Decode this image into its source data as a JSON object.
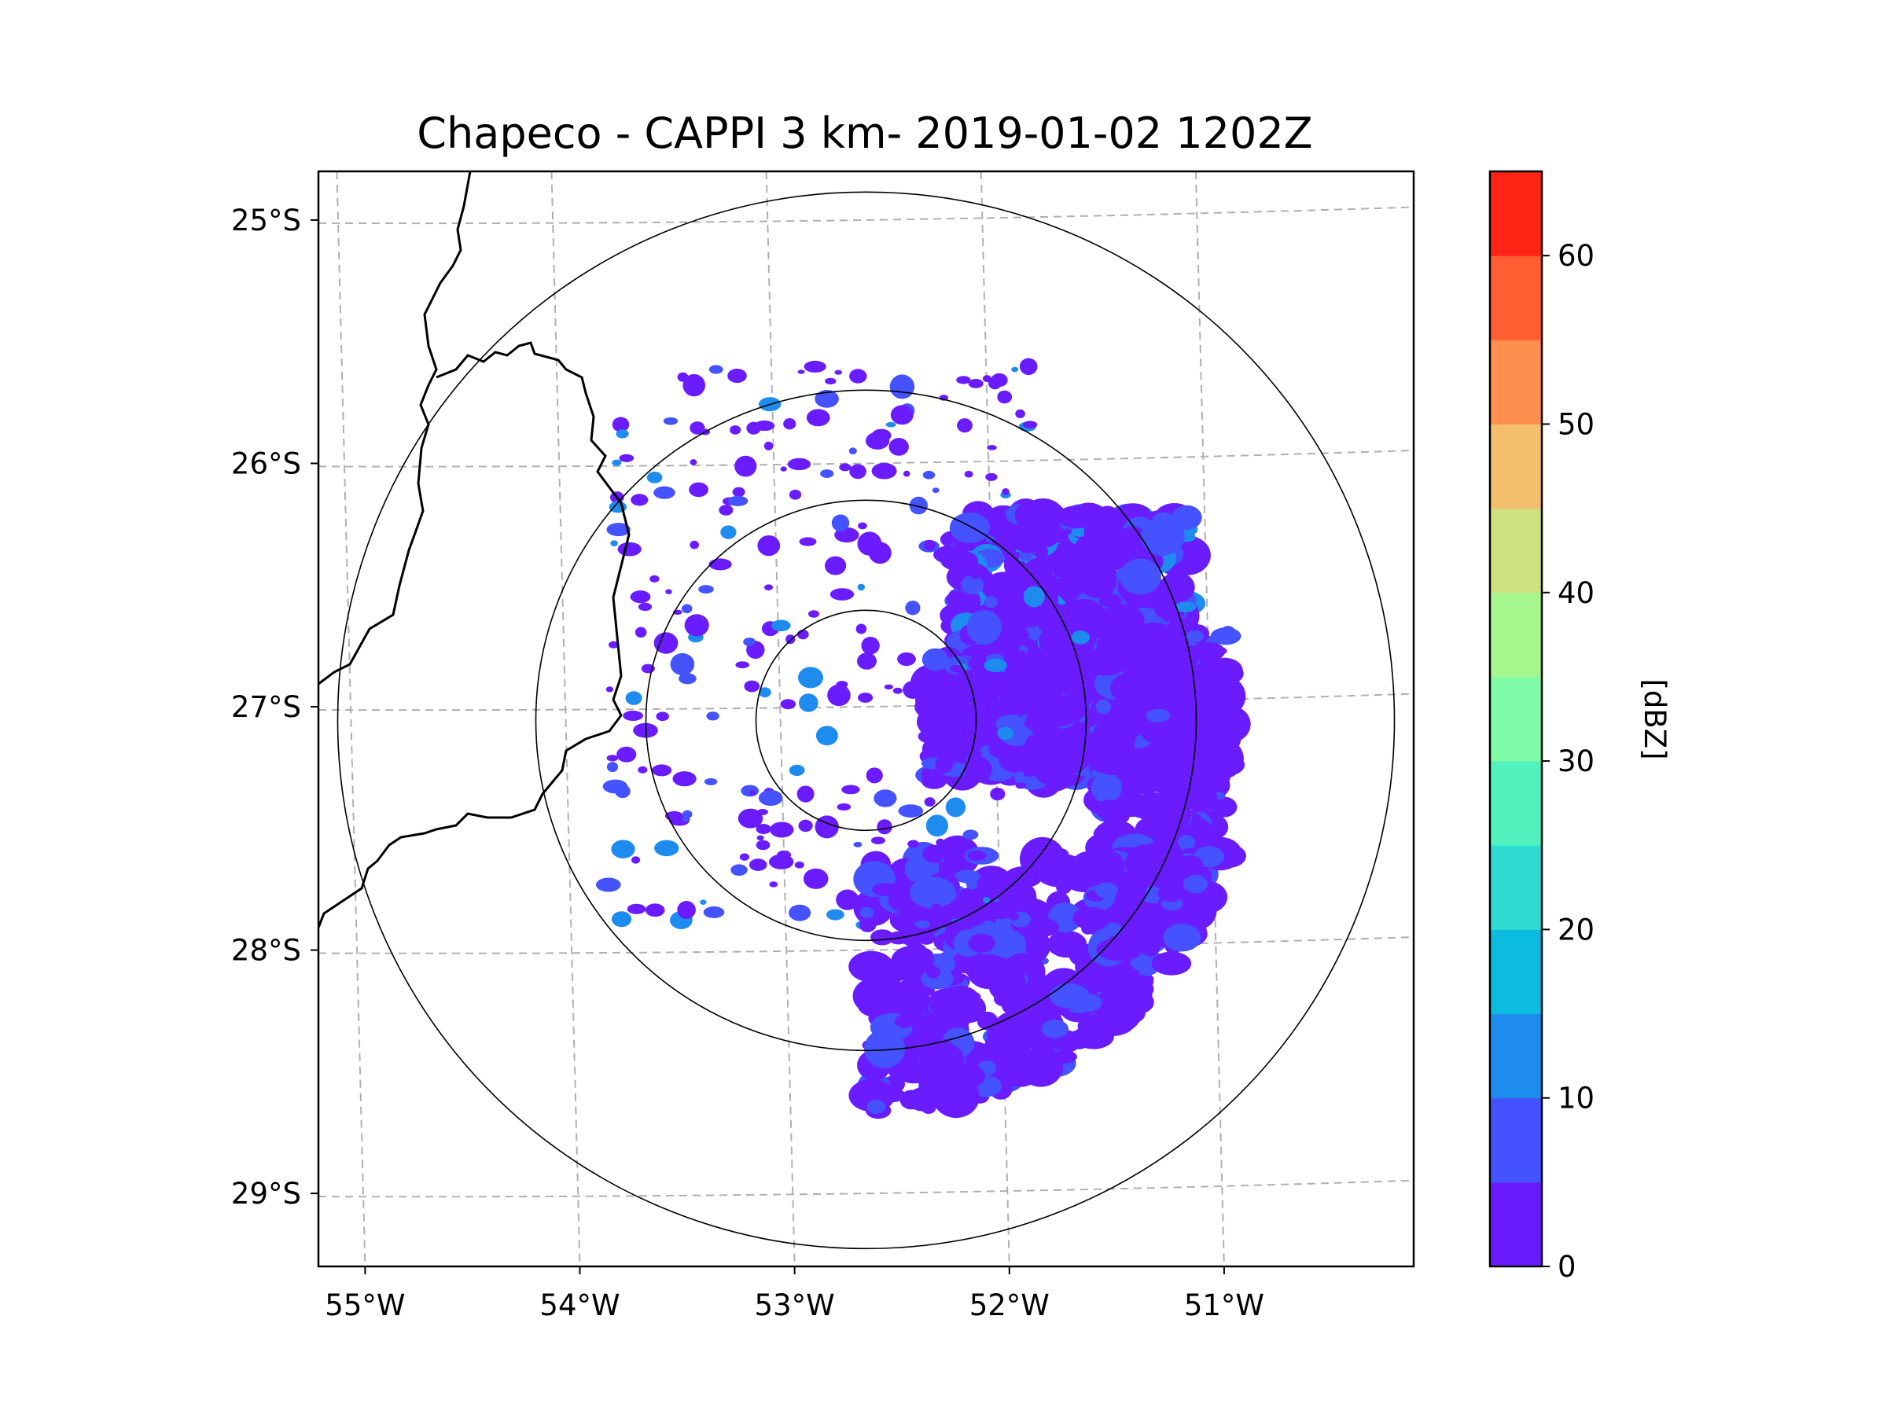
{
  "chart_data": {
    "type": "heatmap",
    "title": "Chapeco - CAPPI 3 km- 2019-01-02 1202Z",
    "xlabel": "",
    "ylabel": "",
    "x_tick_labels": [
      "55°W",
      "54°W",
      "53°W",
      "52°W",
      "51°W"
    ],
    "x_tick_values": [
      -55,
      -54,
      -53,
      -52,
      -51
    ],
    "y_tick_labels": [
      "25°S",
      "26°S",
      "27°S",
      "28°S",
      "29°S"
    ],
    "y_tick_values": [
      -25,
      -26,
      -27,
      -28,
      -29
    ],
    "xlim": [
      -55.15,
      -50.05
    ],
    "ylim": [
      -29.3,
      -24.8
    ],
    "grid": true,
    "radar_center": {
      "lon": -52.6,
      "lat": -27.03
    },
    "range_rings_km": [
      50,
      100,
      150,
      240
    ],
    "colorbar": {
      "label": "[dBZ]",
      "tick_labels": [
        "0",
        "10",
        "20",
        "30",
        "40",
        "50",
        "60"
      ],
      "tick_values": [
        0,
        10,
        20,
        30,
        40,
        50,
        60
      ],
      "range": [
        0,
        65
      ],
      "bins": [
        {
          "min": 0,
          "max": 5,
          "color": "#6a1cff"
        },
        {
          "min": 5,
          "max": 10,
          "color": "#4452ff"
        },
        {
          "min": 10,
          "max": 15,
          "color": "#1e8cef"
        },
        {
          "min": 15,
          "max": 20,
          "color": "#0cbce0"
        },
        {
          "min": 20,
          "max": 25,
          "color": "#2edbd1"
        },
        {
          "min": 25,
          "max": 30,
          "color": "#52f2be"
        },
        {
          "min": 30,
          "max": 35,
          "color": "#7efca8"
        },
        {
          "min": 35,
          "max": 40,
          "color": "#a6f68e"
        },
        {
          "min": 40,
          "max": 45,
          "color": "#cde17f"
        },
        {
          "min": 45,
          "max": 50,
          "color": "#f4bf6c"
        },
        {
          "min": 50,
          "max": 55,
          "color": "#ff8f4f"
        },
        {
          "min": 55,
          "max": 60,
          "color": "#ff5d32"
        },
        {
          "min": 60,
          "max": 65,
          "color": "#ff2416"
        }
      ]
    },
    "echo_regions": [
      {
        "name": "east-northeast band",
        "lon": [
          -52.2,
          -51.1
        ],
        "lat": [
          -26.8,
          -26.2
        ],
        "dbz": [
          0,
          15
        ]
      },
      {
        "name": "east band",
        "lon": [
          -52.3,
          -51.1
        ],
        "lat": [
          -27.3,
          -26.8
        ],
        "dbz": [
          0,
          10
        ]
      },
      {
        "name": "eastern arc",
        "lon": [
          -51.5,
          -50.9
        ],
        "lat": [
          -28.4,
          -26.7
        ],
        "dbz": [
          0,
          10
        ]
      },
      {
        "name": "south-southeast mass",
        "lon": [
          -52.6,
          -51.0
        ],
        "lat": [
          -28.7,
          -27.6
        ],
        "dbz": [
          0,
          10
        ]
      },
      {
        "name": "scattered north and west",
        "lon": [
          -53.8,
          -51.8
        ],
        "lat": [
          -27.9,
          -25.6
        ],
        "dbz": [
          0,
          15
        ]
      }
    ]
  }
}
